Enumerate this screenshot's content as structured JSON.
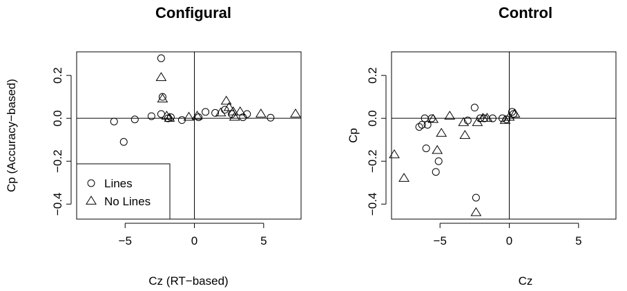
{
  "chart_data": [
    {
      "type": "scatter",
      "title": "Configural",
      "xlabel": "Cz (RT−based)",
      "ylabel": "Cp (Accuracy−based)",
      "xlim": [
        -8.5,
        7.7
      ],
      "ylim": [
        -0.47,
        0.31
      ],
      "xticks": [
        -5,
        0,
        5
      ],
      "xtick_labels": [
        "−5",
        "0",
        "5"
      ],
      "yticks": [
        -0.4,
        -0.2,
        0.0,
        0.2
      ],
      "ytick_labels": [
        "−0.4",
        "−0.2",
        "0.0",
        "0.2"
      ],
      "reference_lines": {
        "x": 0,
        "y": 0
      },
      "grid": false,
      "legend": {
        "position": "bottom-left",
        "entries": [
          {
            "label": "Lines",
            "marker": "circle"
          },
          {
            "label": "No Lines",
            "marker": "triangle"
          }
        ]
      },
      "series": [
        {
          "name": "Lines",
          "marker": "circle",
          "points": [
            [
              -5.8,
              -0.015
            ],
            [
              -5.1,
              -0.11
            ],
            [
              -4.3,
              -0.005
            ],
            [
              -3.1,
              0.01
            ],
            [
              -2.4,
              0.28
            ],
            [
              -2.3,
              0.1
            ],
            [
              -2.4,
              0.02
            ],
            [
              -1.9,
              0.0
            ],
            [
              -1.7,
              0.005
            ],
            [
              -0.9,
              -0.008
            ],
            [
              0.3,
              0.005
            ],
            [
              0.8,
              0.03
            ],
            [
              1.5,
              0.025
            ],
            [
              2.2,
              0.04
            ],
            [
              2.7,
              0.02
            ],
            [
              3.5,
              0.005
            ],
            [
              3.8,
              0.02
            ],
            [
              5.5,
              0.003
            ]
          ]
        },
        {
          "name": "No Lines",
          "marker": "triangle",
          "points": [
            [
              -2.4,
              0.19
            ],
            [
              -2.3,
              0.09
            ],
            [
              -2.0,
              0.01
            ],
            [
              -1.8,
              0.0
            ],
            [
              -0.4,
              0.005
            ],
            [
              0.2,
              0.01
            ],
            [
              1.9,
              0.025
            ],
            [
              2.3,
              0.08
            ],
            [
              2.5,
              0.05
            ],
            [
              2.8,
              0.03
            ],
            [
              2.9,
              0.005
            ],
            [
              3.3,
              0.03
            ],
            [
              4.8,
              0.02
            ],
            [
              7.3,
              0.02
            ]
          ]
        }
      ]
    },
    {
      "type": "scatter",
      "title": "Control",
      "xlabel": "Cz",
      "ylabel": "Cp",
      "xlim": [
        -8.5,
        7.7
      ],
      "ylim": [
        -0.47,
        0.31
      ],
      "xticks": [
        -5,
        0,
        5
      ],
      "xtick_labels": [
        "−5",
        "0",
        "5"
      ],
      "yticks": [
        -0.4,
        -0.2,
        0.0,
        0.2
      ],
      "ytick_labels": [
        "−0.4",
        "−0.2",
        "0.0",
        "0.2"
      ],
      "reference_lines": {
        "x": 0,
        "y": 0
      },
      "grid": false,
      "series": [
        {
          "name": "Lines",
          "marker": "circle",
          "points": [
            [
              -6.5,
              -0.04
            ],
            [
              -6.3,
              -0.03
            ],
            [
              -6.1,
              0.0
            ],
            [
              -6.0,
              -0.14
            ],
            [
              -5.9,
              -0.03
            ],
            [
              -5.6,
              0.0
            ],
            [
              -5.3,
              -0.25
            ],
            [
              -5.1,
              -0.2
            ],
            [
              -3.0,
              -0.01
            ],
            [
              -2.5,
              0.05
            ],
            [
              -2.4,
              -0.37
            ],
            [
              -2.1,
              0.0
            ],
            [
              -1.8,
              0.0
            ],
            [
              -1.2,
              0.0
            ],
            [
              -0.5,
              0.0
            ],
            [
              -0.2,
              -0.005
            ],
            [
              0.2,
              0.03
            ],
            [
              0.3,
              0.02
            ]
          ]
        },
        {
          "name": "No Lines",
          "marker": "triangle",
          "points": [
            [
              -8.3,
              -0.17
            ],
            [
              -7.6,
              -0.28
            ],
            [
              -5.5,
              -0.005
            ],
            [
              -5.2,
              -0.15
            ],
            [
              -4.9,
              -0.07
            ],
            [
              -4.3,
              0.01
            ],
            [
              -3.3,
              -0.02
            ],
            [
              -3.2,
              -0.08
            ],
            [
              -2.4,
              -0.44
            ],
            [
              -2.3,
              -0.02
            ],
            [
              -1.9,
              0.0
            ],
            [
              -1.6,
              0.0
            ],
            [
              -0.3,
              -0.01
            ],
            [
              0.0,
              0.005
            ],
            [
              0.4,
              0.02
            ]
          ]
        }
      ]
    }
  ]
}
